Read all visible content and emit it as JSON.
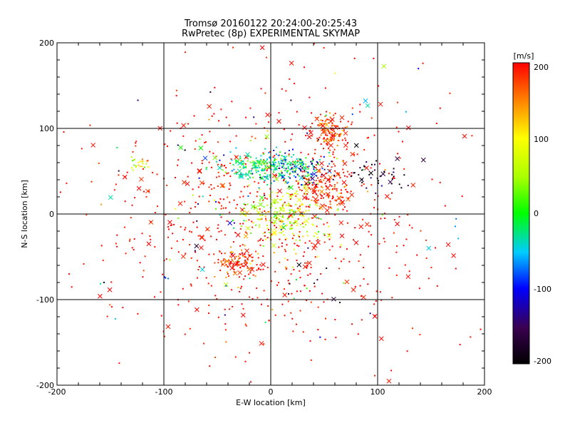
{
  "chart_data": {
    "type": "scatter",
    "title": "Tromsø 20160122 20:24:00-20:25:43",
    "subtitle": "RwPretec (8p) EXPERIMENTAL SKYMAP",
    "xlabel": "E-W location [km]",
    "ylabel": "N-S location [km]",
    "xlim": [
      -200,
      200
    ],
    "ylim": [
      -200,
      200
    ],
    "x_ticks": [
      "-200",
      "-100",
      "0",
      "100",
      "200"
    ],
    "y_ticks": [
      "200",
      "100",
      "0",
      "-100",
      "-200"
    ],
    "grid": true,
    "colorbar": {
      "label": "[m/s]",
      "min": -200,
      "max": 200,
      "ticks": [
        "200",
        "100",
        "0",
        "-100",
        "-200"
      ]
    },
    "marker_types": [
      "dot",
      "cross"
    ],
    "clusters": [
      {
        "x": 0,
        "y": 55,
        "sx": 22,
        "sy": 8,
        "v": -20,
        "n": 260
      },
      {
        "x": 55,
        "y": 95,
        "sx": 8,
        "sy": 10,
        "v": 180,
        "n": 120
      },
      {
        "x": 50,
        "y": 30,
        "sx": 15,
        "sy": 12,
        "v": 190,
        "n": 160
      },
      {
        "x": -30,
        "y": -55,
        "sx": 10,
        "sy": 8,
        "v": 180,
        "n": 90
      },
      {
        "x": 30,
        "y": 50,
        "sx": 12,
        "sy": 10,
        "v": -120,
        "n": 60
      },
      {
        "x": 10,
        "y": 0,
        "sx": 18,
        "sy": 18,
        "v": 70,
        "n": 200
      },
      {
        "x": -125,
        "y": 58,
        "sx": 6,
        "sy": 4,
        "v": 90,
        "n": 20
      },
      {
        "x": 100,
        "y": 45,
        "sx": 15,
        "sy": 8,
        "v": -160,
        "n": 40
      }
    ],
    "background": {
      "n": 900,
      "v": 195,
      "sx": 60,
      "sy": 60
    }
  }
}
